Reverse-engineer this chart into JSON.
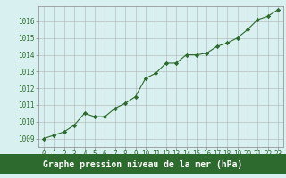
{
  "x": [
    0,
    1,
    2,
    3,
    4,
    5,
    6,
    7,
    8,
    9,
    10,
    11,
    12,
    13,
    14,
    15,
    16,
    17,
    18,
    19,
    20,
    21,
    22,
    23
  ],
  "y": [
    1009.0,
    1009.2,
    1009.4,
    1009.8,
    1010.5,
    1010.3,
    1010.3,
    1010.8,
    1011.1,
    1011.5,
    1012.6,
    1012.9,
    1013.5,
    1013.5,
    1014.0,
    1014.0,
    1014.1,
    1014.5,
    1014.7,
    1015.0,
    1015.5,
    1016.1,
    1016.3,
    1016.7
  ],
  "line_color": "#2d6a2d",
  "marker": "D",
  "marker_size": 2.2,
  "background_color": "#d8f0f0",
  "grid_color": "#b0b0b0",
  "xlabel": "Graphe pression niveau de la mer (hPa)",
  "xlabel_color": "#ffffff",
  "xlabel_bg": "#2d6a2d",
  "ylim": [
    1008.5,
    1016.9
  ],
  "yticks": [
    1009,
    1010,
    1011,
    1012,
    1013,
    1014,
    1015,
    1016
  ],
  "xticks": [
    0,
    1,
    2,
    3,
    4,
    5,
    6,
    7,
    8,
    9,
    10,
    11,
    12,
    13,
    14,
    15,
    16,
    17,
    18,
    19,
    20,
    21,
    22,
    23
  ],
  "tick_fontsize": 5.5,
  "xlabel_fontsize": 7.0,
  "label_color": "#2d6a2d",
  "spine_color": "#888888"
}
